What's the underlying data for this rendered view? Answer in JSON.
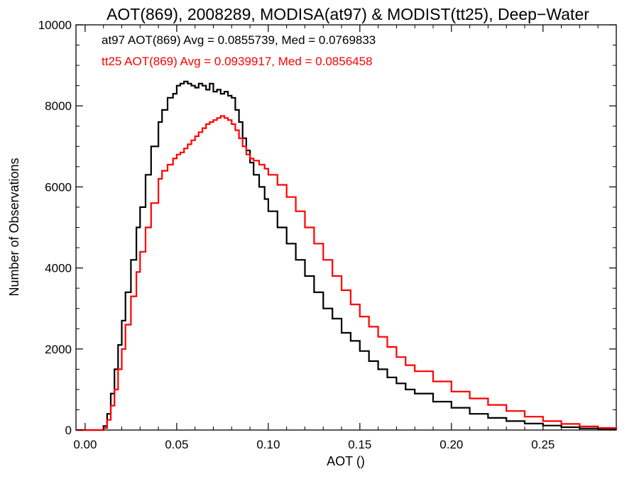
{
  "chart_data": {
    "type": "line",
    "title": "AOT(869), 2008289, MODISA(at97) & MODIST(tt25), Deep−Water",
    "xlabel": "AOT ()",
    "ylabel": "Number of Observations",
    "xlim": [
      -0.005,
      0.29
    ],
    "ylim": [
      0,
      10000
    ],
    "x_ticks": [
      0.0,
      0.05,
      0.1,
      0.15,
      0.2,
      0.25
    ],
    "x_tick_labels": [
      "0.00",
      "0.05",
      "0.10",
      "0.15",
      "0.20",
      "0.25"
    ],
    "y_ticks": [
      0,
      2000,
      4000,
      6000,
      8000,
      10000
    ],
    "y_tick_labels": [
      "0",
      "2000",
      "4000",
      "6000",
      "8000",
      "10000"
    ],
    "grid": false,
    "annotations": [
      {
        "text": "at97 AOT(869) Avg = 0.0855739, Med = 0.0769833",
        "color": "#000000"
      },
      {
        "text": "tt25 AOT(869) Avg = 0.0939917, Med = 0.0856458",
        "color": "#ff0000"
      }
    ],
    "series": [
      {
        "color": "#000000",
        "x": [
          -0.005,
          0.005,
          0.008,
          0.01,
          0.012,
          0.014,
          0.016,
          0.018,
          0.02,
          0.022,
          0.025,
          0.028,
          0.03,
          0.033,
          0.036,
          0.04,
          0.042,
          0.045,
          0.048,
          0.05,
          0.052,
          0.054,
          0.056,
          0.058,
          0.06,
          0.062,
          0.064,
          0.066,
          0.068,
          0.07,
          0.072,
          0.074,
          0.076,
          0.078,
          0.08,
          0.082,
          0.084,
          0.086,
          0.088,
          0.09,
          0.092,
          0.095,
          0.098,
          0.1,
          0.105,
          0.11,
          0.115,
          0.12,
          0.125,
          0.13,
          0.135,
          0.14,
          0.145,
          0.15,
          0.155,
          0.16,
          0.165,
          0.17,
          0.175,
          0.18,
          0.19,
          0.2,
          0.21,
          0.22,
          0.23,
          0.24,
          0.25,
          0.26,
          0.27,
          0.28,
          0.29
        ],
        "y": [
          0,
          0,
          0,
          100,
          400,
          900,
          1500,
          2100,
          2700,
          3400,
          4200,
          5000,
          5500,
          6300,
          7000,
          7600,
          7900,
          8200,
          8300,
          8500,
          8550,
          8600,
          8550,
          8500,
          8450,
          8550,
          8500,
          8400,
          8550,
          8350,
          8400,
          8300,
          8350,
          8250,
          8200,
          7900,
          7600,
          7200,
          6900,
          6600,
          6300,
          6000,
          5700,
          5400,
          5000,
          4600,
          4200,
          3800,
          3400,
          3000,
          2750,
          2400,
          2200,
          1950,
          1700,
          1500,
          1300,
          1150,
          1000,
          900,
          700,
          550,
          400,
          300,
          220,
          160,
          110,
          70,
          40,
          20,
          10
        ]
      },
      {
        "color": "#ff0000",
        "x": [
          -0.005,
          0.005,
          0.008,
          0.01,
          0.012,
          0.014,
          0.016,
          0.018,
          0.02,
          0.022,
          0.025,
          0.028,
          0.03,
          0.033,
          0.036,
          0.04,
          0.042,
          0.045,
          0.048,
          0.05,
          0.052,
          0.054,
          0.056,
          0.058,
          0.06,
          0.062,
          0.064,
          0.066,
          0.068,
          0.07,
          0.072,
          0.074,
          0.076,
          0.078,
          0.08,
          0.082,
          0.084,
          0.086,
          0.088,
          0.09,
          0.092,
          0.095,
          0.098,
          0.1,
          0.105,
          0.11,
          0.115,
          0.12,
          0.125,
          0.13,
          0.135,
          0.14,
          0.145,
          0.15,
          0.155,
          0.16,
          0.165,
          0.17,
          0.175,
          0.18,
          0.19,
          0.2,
          0.21,
          0.22,
          0.23,
          0.24,
          0.25,
          0.26,
          0.27,
          0.28,
          0.29
        ],
        "y": [
          0,
          0,
          0,
          50,
          250,
          600,
          1000,
          1500,
          2000,
          2600,
          3300,
          3900,
          4400,
          5000,
          5600,
          6200,
          6400,
          6550,
          6700,
          6800,
          6850,
          6950,
          7050,
          7150,
          7250,
          7350,
          7450,
          7550,
          7600,
          7650,
          7700,
          7750,
          7700,
          7650,
          7550,
          7400,
          7200,
          7000,
          6800,
          6700,
          6650,
          6550,
          6450,
          6300,
          6050,
          5750,
          5400,
          5000,
          4600,
          4200,
          3800,
          3450,
          3100,
          2800,
          2550,
          2300,
          2050,
          1800,
          1600,
          1450,
          1200,
          950,
          780,
          620,
          470,
          330,
          220,
          150,
          90,
          50,
          25
        ]
      }
    ]
  }
}
